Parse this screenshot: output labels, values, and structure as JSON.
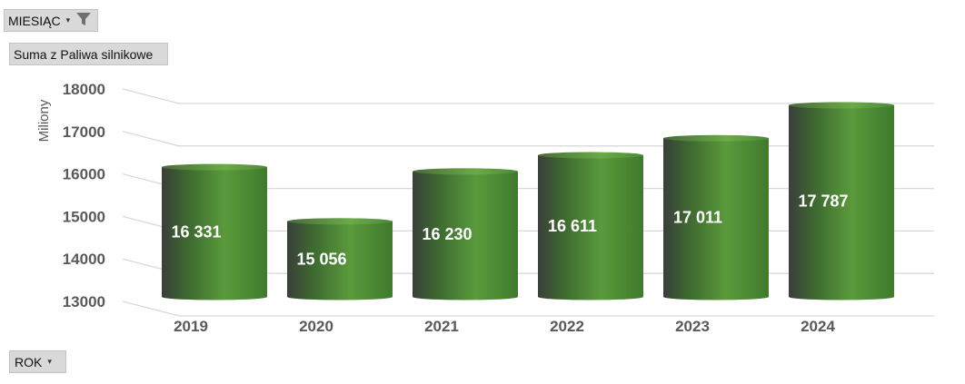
{
  "filters": {
    "month_label": "MIESIĄC",
    "value_field_label": "Suma z Paliwa silnikowe",
    "axis_field_label": "ROK"
  },
  "chart_data": {
    "type": "bar",
    "title": "",
    "xlabel": "",
    "ylabel": "Miliony",
    "ylim": [
      13000,
      18000
    ],
    "yticks": [
      "13000",
      "14000",
      "15000",
      "16000",
      "17000",
      "18000"
    ],
    "categories": [
      "2019",
      "2020",
      "2021",
      "2022",
      "2023",
      "2024"
    ],
    "values": [
      16331,
      15056,
      16230,
      16611,
      17011,
      17787
    ],
    "data_labels": [
      "16 331",
      "15 056",
      "16 230",
      "16 611",
      "17 011",
      "17 787"
    ],
    "grid": true,
    "legend": "none",
    "colors": {
      "bar_light": "#5a9a3c",
      "bar_dark": "#3a3f3a",
      "grid": "#d9d9d9",
      "text": "#595959"
    }
  }
}
